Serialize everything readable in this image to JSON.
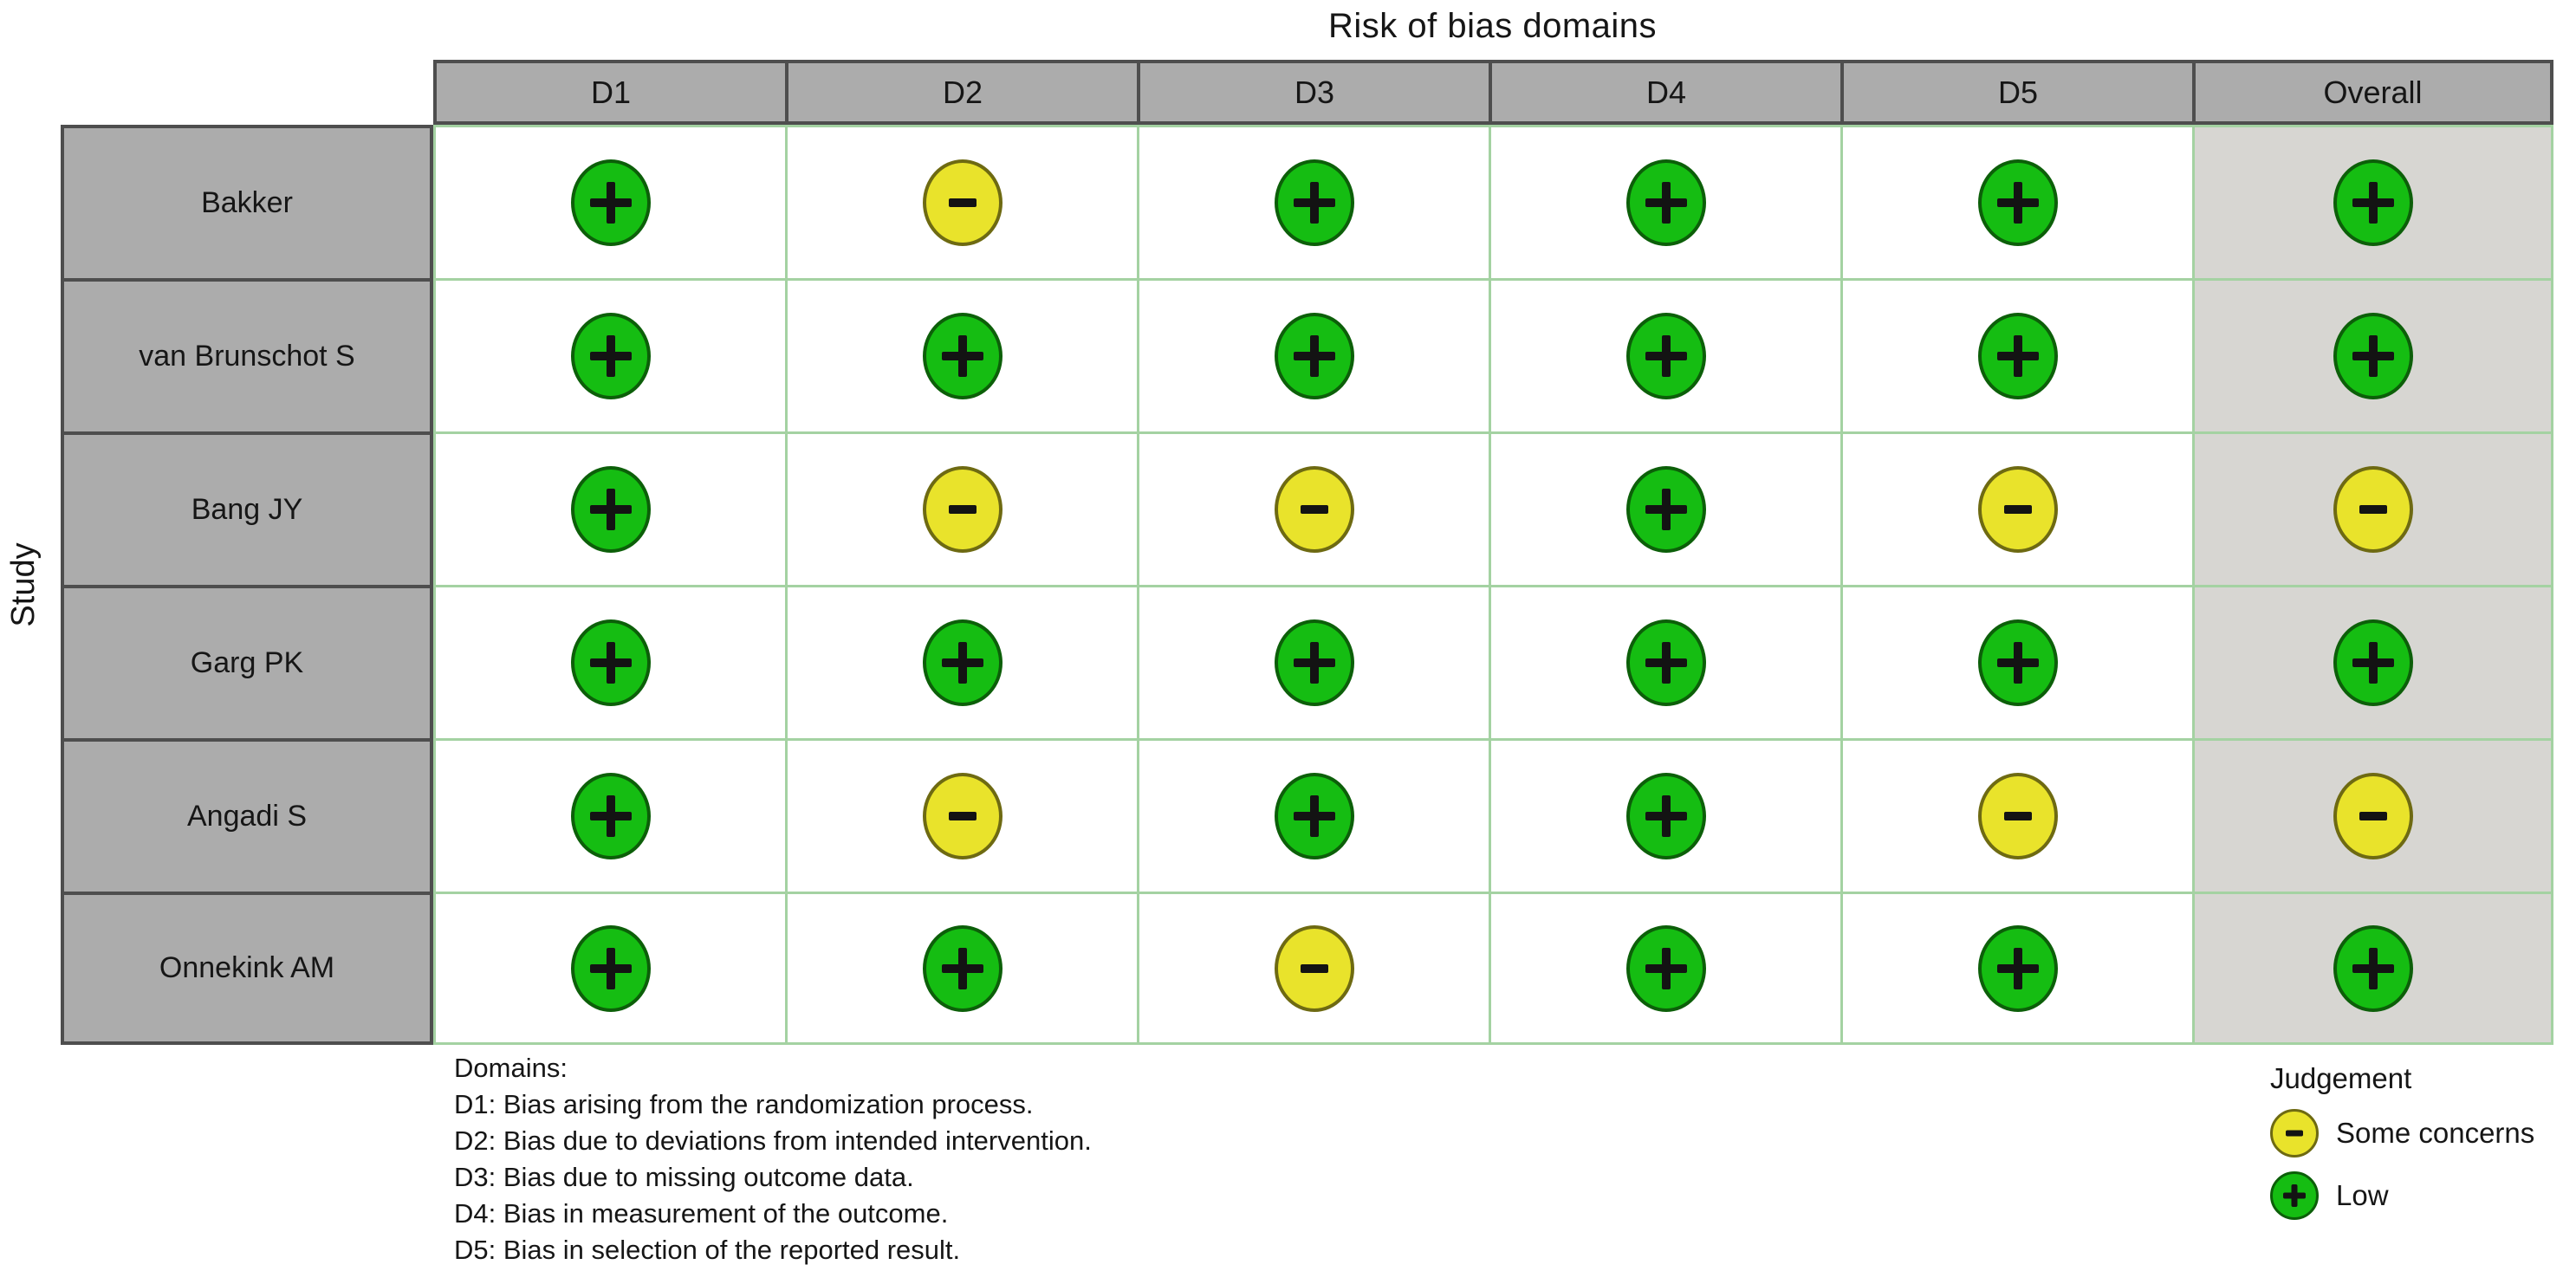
{
  "title": "Risk of bias domains",
  "axis_label": "Study",
  "table": {
    "domains": [
      "D1",
      "D2",
      "D3",
      "D4",
      "D5",
      "Overall"
    ],
    "rows": [
      {
        "study": "Bakker",
        "cells": [
          "low",
          "some",
          "low",
          "low",
          "low",
          "low"
        ]
      },
      {
        "study": "van Brunschot S",
        "cells": [
          "low",
          "low",
          "low",
          "low",
          "low",
          "low"
        ]
      },
      {
        "study": "Bang JY",
        "cells": [
          "low",
          "some",
          "some",
          "low",
          "some",
          "some"
        ]
      },
      {
        "study": "Garg PK",
        "cells": [
          "low",
          "low",
          "low",
          "low",
          "low",
          "low"
        ]
      },
      {
        "study": "Angadi S",
        "cells": [
          "low",
          "some",
          "low",
          "low",
          "some",
          "some"
        ]
      },
      {
        "study": "Onnekink AM",
        "cells": [
          "low",
          "low",
          "some",
          "low",
          "low",
          "low"
        ]
      }
    ]
  },
  "footnote": {
    "heading": "Domains:",
    "lines": [
      "D1: Bias arising from the randomization process.",
      "D2: Bias due to deviations from intended intervention.",
      "D3: Bias due to missing outcome data.",
      "D4: Bias in measurement of the outcome.",
      "D5: Bias in selection of the reported result."
    ]
  },
  "legend": {
    "title": "Judgement",
    "items": [
      {
        "judgement": "some",
        "label": "Some concerns"
      },
      {
        "judgement": "low",
        "label": "Low"
      }
    ]
  },
  "colors": {
    "low_fill": "#15bd12",
    "low_border": "#0c5f09",
    "some_concerns_fill": "#e9e32b",
    "some_concerns_border": "#6e6a12",
    "header_bg": "#acacac",
    "overall_column_bg": "#d7d6d2",
    "grid_line": "#a4d2a2",
    "dark_border": "#4e4e4e"
  },
  "chart_data": {
    "type": "table",
    "title": "Risk of bias domains",
    "xlabel": "",
    "ylabel": "Study",
    "columns": [
      "D1",
      "D2",
      "D3",
      "D4",
      "D5",
      "Overall"
    ],
    "rows": [
      "Bakker",
      "van Brunschot S",
      "Bang JY",
      "Garg PK",
      "Angadi S",
      "Onnekink AM"
    ],
    "values": [
      [
        "low",
        "some_concerns",
        "low",
        "low",
        "low",
        "low"
      ],
      [
        "low",
        "low",
        "low",
        "low",
        "low",
        "low"
      ],
      [
        "low",
        "some_concerns",
        "some_concerns",
        "low",
        "some_concerns",
        "some_concerns"
      ],
      [
        "low",
        "low",
        "low",
        "low",
        "low",
        "low"
      ],
      [
        "low",
        "some_concerns",
        "low",
        "low",
        "some_concerns",
        "some_concerns"
      ],
      [
        "low",
        "low",
        "some_concerns",
        "low",
        "low",
        "low"
      ]
    ],
    "legend_position": "bottom-right",
    "legend": [
      {
        "label": "Some concerns",
        "symbol": "-",
        "color": "#e9e32b"
      },
      {
        "label": "Low",
        "symbol": "+",
        "color": "#15bd12"
      }
    ],
    "footnotes": [
      "D1: Bias arising from the randomization process.",
      "D2: Bias due to deviations from intended intervention.",
      "D3: Bias due to missing outcome data.",
      "D4: Bias in measurement of the outcome.",
      "D5: Bias in selection of the reported result."
    ]
  }
}
